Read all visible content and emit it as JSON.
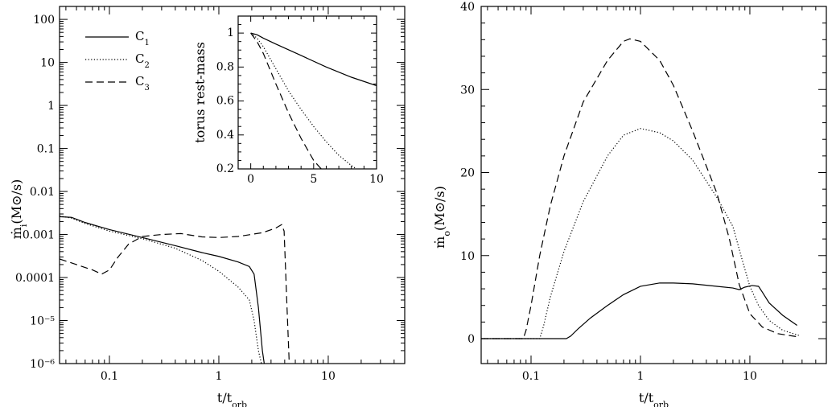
{
  "chart_data": [
    {
      "type": "line",
      "xscale": "log",
      "yscale": "log",
      "xlim": [
        0.035,
        50
      ],
      "ylim": [
        1e-06,
        200
      ],
      "xlabel": "t/t_orb",
      "ylabel": "ṁ_i(M_⊙/s)",
      "x_ticklabels": [
        {
          "v": 0.1,
          "t": "0.1"
        },
        {
          "v": 1,
          "t": "1"
        },
        {
          "v": 10,
          "t": "10"
        }
      ],
      "y_ticklabels": [
        {
          "v": 100,
          "t": "100"
        },
        {
          "v": 10,
          "t": "10"
        },
        {
          "v": 1,
          "t": "1"
        },
        {
          "v": 0.1,
          "t": "0.1"
        },
        {
          "v": 0.01,
          "t": "0.01"
        },
        {
          "v": 0.001,
          "t": "0.001"
        },
        {
          "v": 0.0001,
          "t": "0.0001"
        },
        {
          "v": 1e-05,
          "t": "10⁻⁵"
        },
        {
          "v": 1e-06,
          "t": "10⁻⁶"
        }
      ],
      "legend": "top-left",
      "series": [
        {
          "name": "C1",
          "style": "solid",
          "points": [
            [
              0.035,
              0.0026
            ],
            [
              0.045,
              0.0025
            ],
            [
              0.06,
              0.0019
            ],
            [
              0.1,
              0.0013
            ],
            [
              0.2,
              0.00085
            ],
            [
              0.4,
              0.00055
            ],
            [
              0.7,
              0.00038
            ],
            [
              1.0,
              0.00031
            ],
            [
              1.5,
              0.00023
            ],
            [
              1.9,
              0.00018
            ],
            [
              2.1,
              0.00012
            ],
            [
              2.3,
              2e-05
            ],
            [
              2.5,
              2e-06
            ],
            [
              2.6,
              1e-06
            ]
          ]
        },
        {
          "name": "C2",
          "style": "dotted",
          "points": [
            [
              0.035,
              0.0027
            ],
            [
              0.045,
              0.0024
            ],
            [
              0.06,
              0.0018
            ],
            [
              0.1,
              0.0012
            ],
            [
              0.2,
              0.0008
            ],
            [
              0.4,
              0.00048
            ],
            [
              0.7,
              0.00025
            ],
            [
              1.0,
              0.00014
            ],
            [
              1.5,
              6e-05
            ],
            [
              1.9,
              3e-05
            ],
            [
              2.1,
              1e-05
            ],
            [
              2.3,
              2e-06
            ],
            [
              2.45,
              1e-06
            ]
          ]
        },
        {
          "name": "C3",
          "style": "dashed",
          "points": [
            [
              0.035,
              0.00027
            ],
            [
              0.05,
              0.0002
            ],
            [
              0.07,
              0.00015
            ],
            [
              0.085,
              0.00012
            ],
            [
              0.1,
              0.00015
            ],
            [
              0.12,
              0.0003
            ],
            [
              0.15,
              0.0006
            ],
            [
              0.2,
              0.0009
            ],
            [
              0.3,
              0.001
            ],
            [
              0.45,
              0.00105
            ],
            [
              0.7,
              0.00088
            ],
            [
              1.0,
              0.00085
            ],
            [
              1.5,
              0.0009
            ],
            [
              2.5,
              0.0011
            ],
            [
              3.3,
              0.0014
            ],
            [
              3.75,
              0.0017
            ],
            [
              3.95,
              0.0012
            ],
            [
              4.2,
              2e-05
            ],
            [
              4.4,
              1e-06
            ]
          ]
        }
      ],
      "inset": {
        "type": "line",
        "xlim": [
          -1,
          10
        ],
        "ylim": [
          0.2,
          1.1
        ],
        "ylabel": "torus rest-mass",
        "x_ticklabels": [
          {
            "v": 0,
            "t": "0"
          },
          {
            "v": 5,
            "t": "5"
          },
          {
            "v": 10,
            "t": "10"
          }
        ],
        "y_ticklabels": [
          {
            "v": 0.2,
            "t": "0.2"
          },
          {
            "v": 0.4,
            "t": "0.4"
          },
          {
            "v": 0.6,
            "t": "0.6"
          },
          {
            "v": 0.8,
            "t": "0.8"
          },
          {
            "v": 1.0,
            "t": "1"
          }
        ],
        "series": [
          {
            "name": "C1",
            "style": "solid",
            "points": [
              [
                0,
                1.0
              ],
              [
                0.5,
                0.99
              ],
              [
                1,
                0.97
              ],
              [
                2,
                0.935
              ],
              [
                4,
                0.868
              ],
              [
                6,
                0.8
              ],
              [
                8,
                0.74
              ],
              [
                10,
                0.69
              ]
            ]
          },
          {
            "name": "C2",
            "style": "dotted",
            "points": [
              [
                0,
                1.0
              ],
              [
                0.5,
                0.97
              ],
              [
                1,
                0.92
              ],
              [
                2,
                0.79
              ],
              [
                3,
                0.66
              ],
              [
                4,
                0.55
              ],
              [
                5,
                0.45
              ],
              [
                6,
                0.36
              ],
              [
                7,
                0.28
              ],
              [
                8,
                0.22
              ],
              [
                8.4,
                0.2
              ]
            ]
          },
          {
            "name": "C3",
            "style": "dashed",
            "points": [
              [
                0,
                1.0
              ],
              [
                0.5,
                0.95
              ],
              [
                1,
                0.88
              ],
              [
                2,
                0.7
              ],
              [
                3,
                0.53
              ],
              [
                4,
                0.38
              ],
              [
                5,
                0.25
              ],
              [
                5.6,
                0.2
              ]
            ]
          }
        ]
      }
    },
    {
      "type": "line",
      "xscale": "log",
      "yscale": "linear",
      "xlim": [
        0.035,
        50
      ],
      "ylim": [
        -3,
        40
      ],
      "xlabel": "t/t_orb",
      "ylabel": "ṁ_o(M_⊙/s)",
      "x_ticklabels": [
        {
          "v": 0.1,
          "t": "0.1"
        },
        {
          "v": 1,
          "t": "1"
        },
        {
          "v": 10,
          "t": "10"
        }
      ],
      "y_ticklabels": [
        {
          "v": 0,
          "t": "0"
        },
        {
          "v": 10,
          "t": "10"
        },
        {
          "v": 20,
          "t": "20"
        },
        {
          "v": 30,
          "t": "30"
        },
        {
          "v": 40,
          "t": "40"
        }
      ],
      "series": [
        {
          "name": "C1",
          "style": "solid",
          "points": [
            [
              0.035,
              0
            ],
            [
              0.21,
              0
            ],
            [
              0.23,
              0.3
            ],
            [
              0.27,
              1.2
            ],
            [
              0.35,
              2.5
            ],
            [
              0.5,
              4.0
            ],
            [
              0.7,
              5.3
            ],
            [
              1.0,
              6.3
            ],
            [
              1.5,
              6.7
            ],
            [
              2.0,
              6.7
            ],
            [
              3.0,
              6.6
            ],
            [
              5.0,
              6.3
            ],
            [
              7.0,
              6.1
            ],
            [
              8.0,
              5.9
            ],
            [
              9.0,
              6.2
            ],
            [
              10.5,
              6.4
            ],
            [
              12.0,
              6.3
            ],
            [
              13.0,
              5.6
            ],
            [
              15.0,
              4.3
            ],
            [
              20.0,
              2.8
            ],
            [
              27.0,
              1.6
            ]
          ]
        },
        {
          "name": "C2",
          "style": "dotted",
          "points": [
            [
              0.035,
              0
            ],
            [
              0.12,
              0
            ],
            [
              0.13,
              1.5
            ],
            [
              0.15,
              5.0
            ],
            [
              0.2,
              10.5
            ],
            [
              0.3,
              16.5
            ],
            [
              0.5,
              22.0
            ],
            [
              0.7,
              24.5
            ],
            [
              1.0,
              25.3
            ],
            [
              1.5,
              24.8
            ],
            [
              2.0,
              23.8
            ],
            [
              3.0,
              21.5
            ],
            [
              5.0,
              17.0
            ],
            [
              7.0,
              13.5
            ],
            [
              8.5,
              9.5
            ],
            [
              10.0,
              6.3
            ],
            [
              12.0,
              4.0
            ],
            [
              15.0,
              2.2
            ],
            [
              20.0,
              1.0
            ],
            [
              28.0,
              0.4
            ]
          ]
        },
        {
          "name": "C3",
          "style": "dashed",
          "points": [
            [
              0.035,
              0
            ],
            [
              0.085,
              0
            ],
            [
              0.09,
              1.0
            ],
            [
              0.1,
              4.0
            ],
            [
              0.12,
              10.0
            ],
            [
              0.15,
              16.0
            ],
            [
              0.2,
              22.0
            ],
            [
              0.3,
              28.5
            ],
            [
              0.5,
              33.5
            ],
            [
              0.7,
              35.8
            ],
            [
              0.8,
              36.1
            ],
            [
              1.0,
              35.8
            ],
            [
              1.5,
              33.5
            ],
            [
              2.0,
              30.5
            ],
            [
              3.0,
              25.0
            ],
            [
              5.0,
              17.5
            ],
            [
              6.5,
              12.0
            ],
            [
              8.0,
              6.5
            ],
            [
              10.0,
              3.0
            ],
            [
              13.0,
              1.4
            ],
            [
              18.0,
              0.6
            ],
            [
              28.0,
              0.2
            ]
          ]
        }
      ]
    }
  ]
}
